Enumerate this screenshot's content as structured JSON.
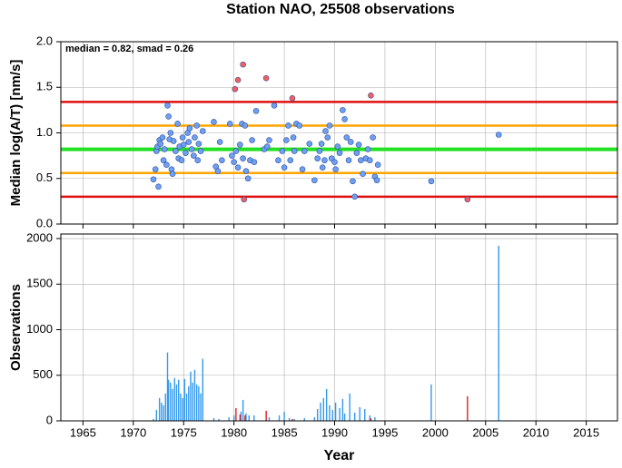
{
  "chart_data": [
    {
      "type": "scatter",
      "title": "Station NAO, 25508 observations",
      "ylabel": "Median log(A/T) [nm/s]",
      "annotation": "median = 0.82, smad = 0.26",
      "xlim": [
        1962.8,
        2018.1
      ],
      "xticks": [
        1965,
        1970,
        1975,
        1980,
        1985,
        1990,
        1995,
        2000,
        2005,
        2010,
        2015
      ],
      "ylim": [
        0,
        2
      ],
      "yticks": [
        {
          "value": 0,
          "label": "0.0"
        },
        {
          "value": 0.5,
          "label": "0.5"
        },
        {
          "value": 1,
          "label": "1.0"
        },
        {
          "value": 1.5,
          "label": "1.5"
        },
        {
          "value": 2,
          "label": "2.0"
        }
      ],
      "grid": true,
      "lines": [
        {
          "value": 1.34,
          "color": "#e01010"
        },
        {
          "value": 0.3,
          "color": "#e01010"
        },
        {
          "value": 1.08,
          "color": "#ffa500"
        },
        {
          "value": 0.56,
          "color": "#ffa500"
        },
        {
          "value": 0.82,
          "color": "#22e022"
        }
      ],
      "series": [
        {
          "color": "#6e9ff0",
          "x": [
            1972.0,
            1972.2,
            1972.3,
            1972.4,
            1972.5,
            1972.6,
            1972.7,
            1972.9,
            1973.0,
            1973.1,
            1973.3,
            1973.4,
            1973.5,
            1973.6,
            1973.7,
            1973.8,
            1973.9,
            1974.0,
            1974.2,
            1974.4,
            1974.5,
            1974.6,
            1974.8,
            1974.9,
            1975.0,
            1975.2,
            1975.4,
            1975.5,
            1975.6,
            1975.8,
            1976.0,
            1976.1,
            1976.3,
            1976.4,
            1976.5,
            1976.7,
            1976.9,
            1978.0,
            1978.2,
            1978.4,
            1978.6,
            1978.8,
            1979.6,
            1979.8,
            1980.0,
            1980.2,
            1980.4,
            1980.6,
            1980.8,
            1980.9,
            1981.1,
            1981.2,
            1981.4,
            1981.6,
            1981.8,
            1982.0,
            1982.2,
            1983.0,
            1983.3,
            1983.5,
            1984.0,
            1984.4,
            1984.8,
            1985.0,
            1985.2,
            1985.4,
            1985.6,
            1985.9,
            1986.0,
            1986.2,
            1986.5,
            1986.8,
            1987.0,
            1987.5,
            1988.0,
            1988.3,
            1988.5,
            1988.7,
            1988.8,
            1989.0,
            1989.1,
            1989.3,
            1989.5,
            1989.7,
            1990.0,
            1990.1,
            1990.3,
            1990.5,
            1990.8,
            1991.0,
            1991.2,
            1991.4,
            1991.6,
            1991.8,
            1992.0,
            1992.2,
            1992.4,
            1992.6,
            1992.8,
            1993.1,
            1993.3,
            1993.5,
            1993.8,
            1994.0,
            1994.2,
            1994.3,
            1999.6,
            2006.3
          ],
          "values": [
            0.49,
            0.6,
            0.8,
            0.85,
            0.41,
            0.92,
            0.88,
            0.95,
            0.7,
            0.82,
            0.65,
            1.3,
            1.18,
            0.93,
            1.0,
            0.6,
            0.55,
            0.91,
            0.8,
            1.1,
            0.72,
            0.85,
            0.7,
            0.95,
            0.87,
            0.78,
            1.0,
            0.9,
            1.05,
            0.82,
            0.75,
            0.95,
            1.08,
            0.7,
            0.88,
            0.8,
            1.02,
            1.12,
            0.63,
            0.58,
            0.9,
            0.7,
            1.1,
            0.75,
            0.68,
            0.8,
            0.62,
            0.87,
            1.1,
            0.72,
            1.08,
            0.58,
            0.5,
            0.7,
            0.92,
            0.68,
            1.24,
            0.82,
            0.85,
            0.92,
            1.3,
            0.7,
            0.8,
            0.62,
            0.92,
            1.08,
            0.7,
            0.95,
            0.8,
            1.1,
            1.08,
            0.6,
            0.8,
            0.88,
            0.48,
            0.72,
            0.8,
            0.88,
            0.62,
            0.7,
            1.02,
            0.95,
            1.08,
            0.72,
            0.68,
            0.6,
            0.85,
            0.78,
            1.25,
            1.15,
            0.95,
            0.7,
            0.9,
            0.47,
            0.3,
            0.78,
            0.87,
            0.7,
            0.55,
            0.72,
            0.82,
            0.7,
            0.95,
            0.52,
            0.48,
            0.65,
            0.47,
            0.98
          ]
        },
        {
          "color": "#f06060",
          "x": [
            1980.1,
            1980.4,
            1980.9,
            1981.0,
            1983.2,
            1985.8,
            1993.6,
            2003.2
          ],
          "values": [
            1.48,
            1.58,
            1.75,
            0.27,
            1.6,
            1.38,
            1.41,
            0.27
          ]
        }
      ]
    },
    {
      "type": "bar",
      "xlabel": "Year",
      "ylabel": "Observations",
      "xlim": [
        1962.8,
        2018.1
      ],
      "xticks": [
        1965,
        1970,
        1975,
        1980,
        1985,
        1990,
        1995,
        2000,
        2005,
        2010,
        2015
      ],
      "ylim": [
        0,
        2050
      ],
      "yticks": [
        0,
        500,
        1000,
        1500,
        2000
      ],
      "grid": true,
      "series": [
        {
          "color": "#3399ee",
          "x": [
            1972.0,
            1972.3,
            1972.6,
            1972.8,
            1973.0,
            1973.2,
            1973.4,
            1973.5,
            1973.7,
            1973.9,
            1974.1,
            1974.3,
            1974.5,
            1974.7,
            1974.9,
            1975.1,
            1975.3,
            1975.5,
            1975.7,
            1975.9,
            1976.1,
            1976.3,
            1976.5,
            1976.7,
            1976.9,
            1978.0,
            1978.5,
            1979.5,
            1980.0,
            1980.7,
            1980.9,
            1981.2,
            1981.5,
            1982.0,
            1983.5,
            1984.5,
            1985.0,
            1985.5,
            1986.0,
            1987.0,
            1988.0,
            1988.3,
            1988.6,
            1988.9,
            1989.2,
            1989.5,
            1989.8,
            1990.1,
            1990.5,
            1990.8,
            1991.0,
            1991.5,
            1992.0,
            1992.5,
            1993.0,
            1993.5,
            1994.0,
            1999.6,
            2006.3
          ],
          "values": [
            20,
            120,
            250,
            200,
            170,
            300,
            750,
            450,
            420,
            350,
            470,
            400,
            450,
            300,
            250,
            460,
            300,
            380,
            540,
            420,
            560,
            400,
            380,
            300,
            680,
            30,
            20,
            40,
            60,
            100,
            230,
            80,
            60,
            60,
            40,
            60,
            100,
            30,
            20,
            30,
            40,
            130,
            200,
            250,
            350,
            170,
            120,
            200,
            140,
            240,
            80,
            300,
            90,
            150,
            130,
            60,
            40,
            400,
            1920
          ]
        },
        {
          "color": "#dd2222",
          "x": [
            1980.2,
            1980.6,
            1981.1,
            1983.2,
            1985.8,
            1993.6,
            2003.2
          ],
          "values": [
            140,
            70,
            60,
            110,
            20,
            30,
            270
          ]
        }
      ]
    }
  ]
}
